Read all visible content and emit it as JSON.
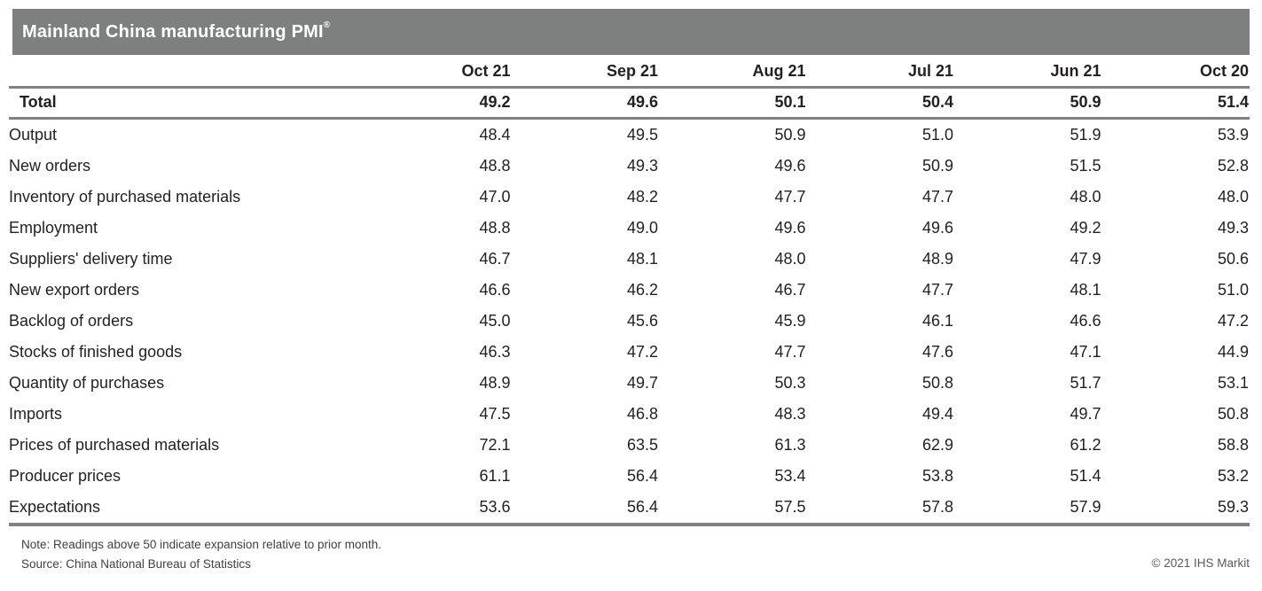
{
  "title_bar": {
    "title": "Mainland China manufacturing PMI",
    "trademark": "®"
  },
  "chart_data": {
    "type": "table",
    "title": "Mainland China manufacturing PMI®",
    "columns": [
      "Oct 21",
      "Sep 21",
      "Aug 21",
      "Jul 21",
      "Jun 21",
      "Oct 20"
    ],
    "total_row": {
      "label": "Total",
      "values": [
        "49.2",
        "49.6",
        "50.1",
        "50.4",
        "50.9",
        "51.4"
      ]
    },
    "rows": [
      {
        "label": "Output",
        "values": [
          "48.4",
          "49.5",
          "50.9",
          "51.0",
          "51.9",
          "53.9"
        ]
      },
      {
        "label": "New orders",
        "values": [
          "48.8",
          "49.3",
          "49.6",
          "50.9",
          "51.5",
          "52.8"
        ]
      },
      {
        "label": "Inventory of purchased materials",
        "values": [
          "47.0",
          "48.2",
          "47.7",
          "47.7",
          "48.0",
          "48.0"
        ]
      },
      {
        "label": "Employment",
        "values": [
          "48.8",
          "49.0",
          "49.6",
          "49.6",
          "49.2",
          "49.3"
        ]
      },
      {
        "label": "Suppliers' delivery time",
        "values": [
          "46.7",
          "48.1",
          "48.0",
          "48.9",
          "47.9",
          "50.6"
        ]
      },
      {
        "label": "New export orders",
        "values": [
          "46.6",
          "46.2",
          "46.7",
          "47.7",
          "48.1",
          "51.0"
        ]
      },
      {
        "label": "Backlog of orders",
        "values": [
          "45.0",
          "45.6",
          "45.9",
          "46.1",
          "46.6",
          "47.2"
        ]
      },
      {
        "label": "Stocks of finished goods",
        "values": [
          "46.3",
          "47.2",
          "47.7",
          "47.6",
          "47.1",
          "44.9"
        ]
      },
      {
        "label": "Quantity of purchases",
        "values": [
          "48.9",
          "49.7",
          "50.3",
          "50.8",
          "51.7",
          "53.1"
        ]
      },
      {
        "label": "Imports",
        "values": [
          "47.5",
          "46.8",
          "48.3",
          "49.4",
          "49.7",
          "50.8"
        ]
      },
      {
        "label": "Prices of purchased materials",
        "values": [
          "72.1",
          "63.5",
          "61.3",
          "62.9",
          "61.2",
          "58.8"
        ]
      },
      {
        "label": "Producer prices",
        "values": [
          "61.1",
          "56.4",
          "53.4",
          "53.8",
          "51.4",
          "53.2"
        ]
      },
      {
        "label": "Expectations",
        "values": [
          "53.6",
          "56.4",
          "57.5",
          "57.8",
          "57.9",
          "59.3"
        ]
      }
    ]
  },
  "footer": {
    "note": "Note: Readings above 50 indicate expansion relative to prior month.",
    "source": "Source: China National Bureau of Statistics",
    "copyright": "© 2021 IHS Markit"
  },
  "colors": {
    "header_bar": "#7e8080",
    "rule": "#7f8182",
    "text": "#231f20",
    "title_text": "#ffffff"
  }
}
